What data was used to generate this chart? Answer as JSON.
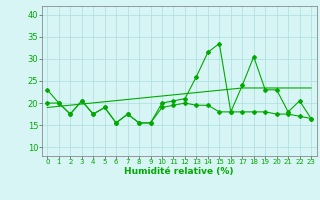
{
  "x": [
    0,
    1,
    2,
    3,
    4,
    5,
    6,
    7,
    8,
    9,
    10,
    11,
    12,
    13,
    14,
    15,
    16,
    17,
    18,
    19,
    20,
    21,
    22,
    23
  ],
  "y_main": [
    23,
    20,
    17.5,
    20.5,
    17.5,
    19,
    15.5,
    17.5,
    15.5,
    15.5,
    20,
    20.5,
    21,
    26,
    31.5,
    33.5,
    18,
    24,
    30.5,
    23,
    23,
    18,
    20.5,
    16.5
  ],
  "y_smooth": [
    20,
    20,
    17.5,
    20.5,
    17.5,
    19,
    15.5,
    17.5,
    15.5,
    15.5,
    19,
    19.5,
    20,
    19.5,
    19.5,
    18,
    18,
    18,
    18,
    18,
    17.5,
    17.5,
    17,
    16.5
  ],
  "y_trend": [
    19.0,
    19.26,
    19.52,
    19.78,
    20.04,
    20.3,
    20.56,
    20.82,
    21.08,
    21.34,
    21.6,
    21.86,
    22.12,
    22.38,
    22.64,
    22.9,
    23.16,
    23.42,
    23.42,
    23.42,
    23.42,
    23.42,
    23.42,
    23.42
  ],
  "line_color": "#00aa00",
  "bg_color": "#d8f5f5",
  "grid_color": "#aadddd",
  "yticks": [
    10,
    15,
    20,
    25,
    30,
    35,
    40
  ],
  "xlabel": "Humidité relative (%)",
  "xlim": [
    -0.5,
    23.5
  ],
  "ylim": [
    8,
    42
  ],
  "figsize": [
    3.2,
    2.0
  ],
  "dpi": 100
}
